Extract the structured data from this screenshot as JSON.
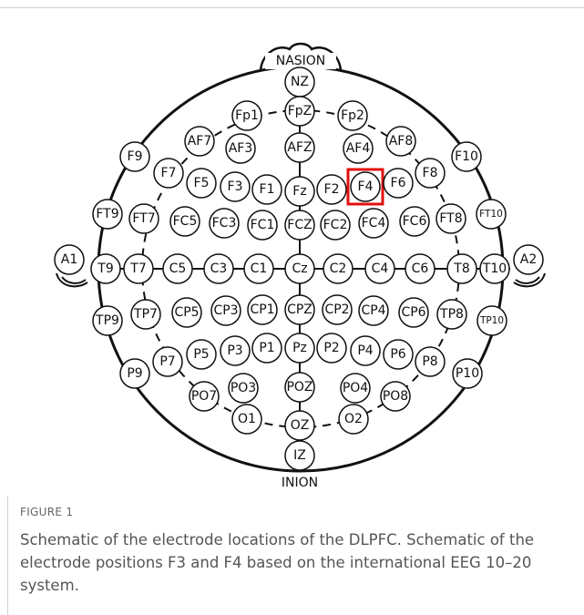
{
  "figure": {
    "landmarks": {
      "nasion": "NASION",
      "inion": "INION"
    },
    "nodes": [
      "NZ",
      "Fp1",
      "FpZ",
      "Fp2",
      "F9",
      "AF7",
      "AF3",
      "AFZ",
      "AF4",
      "AF8",
      "F10",
      "F7",
      "F5",
      "F3",
      "F1",
      "Fz",
      "F2",
      "F4",
      "F6",
      "F8",
      "FT9",
      "FT7",
      "FC5",
      "FC3",
      "FC1",
      "FCZ",
      "FC2",
      "FC4",
      "FC6",
      "FT8",
      "FT10",
      "A1",
      "T9",
      "T7",
      "C5",
      "C3",
      "C1",
      "Cz",
      "C2",
      "C4",
      "C6",
      "T8",
      "T10",
      "A2",
      "TP9",
      "TP7",
      "CP5",
      "CP3",
      "CP1",
      "CPZ",
      "CP2",
      "CP4",
      "CP6",
      "TP8",
      "TP10",
      "P7",
      "P5",
      "P3",
      "P1",
      "Pz",
      "P2",
      "P4",
      "P6",
      "P8",
      "P9",
      "PO7",
      "PO3",
      "POZ",
      "PO4",
      "PO8",
      "P10",
      "O1",
      "OZ",
      "O2",
      "IZ"
    ],
    "caption": {
      "label": "FIGURE 1",
      "text": "Schematic of the electrode locations of the DLPFC. Schematic of the electrode positions F3 and F4 based on the international EEG 10–20 system."
    }
  }
}
